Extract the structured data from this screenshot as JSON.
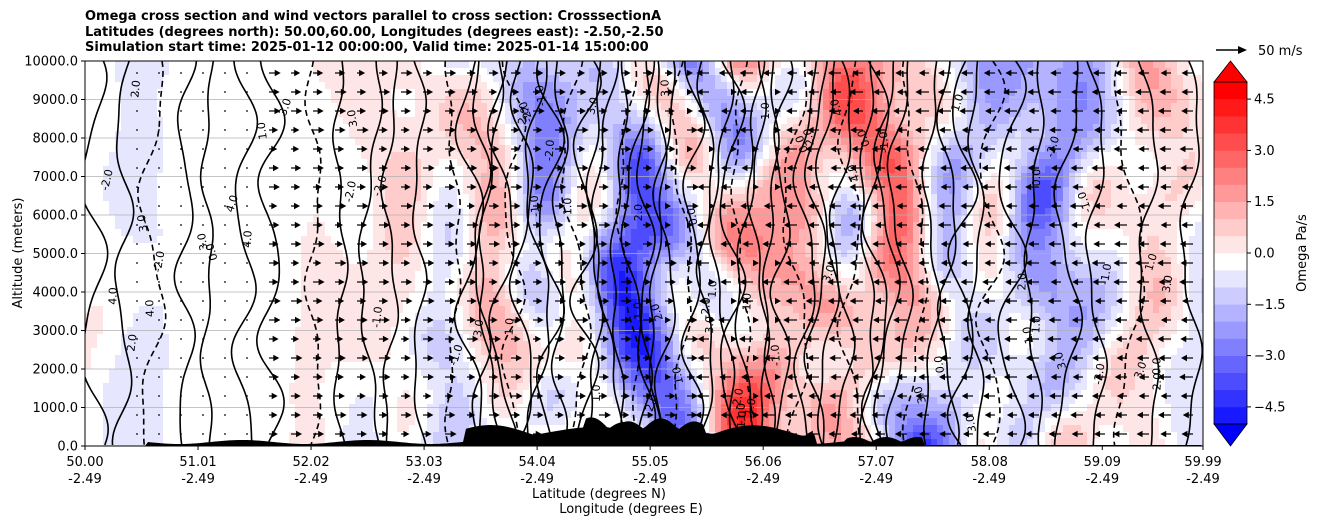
{
  "title_lines": [
    "Omega cross section and wind vectors parallel to cross section: CrosssectionA",
    "Latitudes (degrees north): 50.00,60.00, Longitudes (degrees east): -2.50,-2.50",
    "Simulation start time: 2025-01-12 00:00:00, Valid time: 2025-01-14 15:00:00"
  ],
  "chart_data": {
    "type": "heatmap",
    "subtype": "cross-section filled contour with line contours and wind vectors",
    "ylabel": "Altitude (meters)",
    "xlabel_line1": "Latitude (degrees N)",
    "xlabel_line2": "Longitude (degrees E)",
    "ylim": [
      0,
      10000
    ],
    "y_ticks": [
      "0.0",
      "1000.0",
      "2000.0",
      "3000.0",
      "4000.0",
      "5000.0",
      "6000.0",
      "7000.0",
      "8000.0",
      "9000.0",
      "10000.0"
    ],
    "y_tick_values": [
      0,
      1000,
      2000,
      3000,
      4000,
      5000,
      6000,
      7000,
      8000,
      9000,
      10000
    ],
    "x_range": [
      50.0,
      59.99
    ],
    "x_ticks": [
      {
        "lat": "50.00",
        "lon": "-2.49",
        "value": 50.0
      },
      {
        "lat": "51.01",
        "lon": "-2.49",
        "value": 51.01
      },
      {
        "lat": "52.02",
        "lon": "-2.49",
        "value": 52.02
      },
      {
        "lat": "53.03",
        "lon": "-2.49",
        "value": 53.03
      },
      {
        "lat": "54.04",
        "lon": "-2.49",
        "value": 54.04
      },
      {
        "lat": "55.05",
        "lon": "-2.49",
        "value": 55.05
      },
      {
        "lat": "56.06",
        "lon": "-2.49",
        "value": 56.06
      },
      {
        "lat": "57.07",
        "lon": "-2.49",
        "value": 57.07
      },
      {
        "lat": "58.08",
        "lon": "-2.49",
        "value": 58.08
      },
      {
        "lat": "59.09",
        "lon": "-2.49",
        "value": 59.09
      },
      {
        "lat": "59.99",
        "lon": "-2.49",
        "value": 59.99
      }
    ],
    "grid": "horizontal",
    "colorbar": {
      "label": "Omega Pa/s",
      "ticks": [
        "4.5",
        "3.0",
        "1.5",
        "0.0",
        "−1.5",
        "−3.0",
        "−4.5"
      ],
      "tick_values": [
        4.5,
        3.0,
        1.5,
        0.0,
        -1.5,
        -3.0,
        -4.5
      ],
      "range": [
        -5.0,
        5.0
      ],
      "extend": "both",
      "low_color": "#0000ff",
      "high_color": "#ff0000",
      "mid_color": "#ffffff"
    },
    "quiver_key": {
      "label": "50 m/s",
      "placement": "top-right"
    },
    "contour_labels": [
      "0.0",
      "1.0",
      "2.0",
      "-1.0",
      "-2.0",
      "4.0",
      "3.0"
    ],
    "approx_terrain_max_m": 500
  }
}
